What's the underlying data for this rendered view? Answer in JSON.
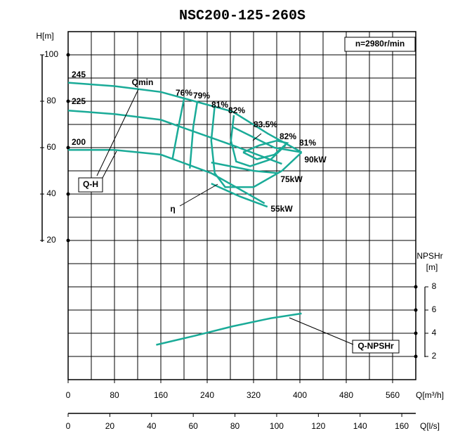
{
  "chart_data": {
    "type": "line",
    "title": "NSC200-125-260S",
    "ylabel": "H[m]",
    "y2label": [
      "NPSHr",
      "[m]"
    ],
    "xlabel": "Q[m³/h]",
    "x2label": "Q[l/s]",
    "xlim": [
      0,
      600
    ],
    "xticks": [
      0,
      80,
      160,
      240,
      320,
      400,
      480,
      560
    ],
    "x2lim": [
      0,
      166.7
    ],
    "x2ticks": [
      0,
      20,
      40,
      60,
      80,
      100,
      120,
      140,
      160
    ],
    "ylim": [
      -40,
      110
    ],
    "yticks": [
      20,
      40,
      60,
      80,
      100
    ],
    "y2lim": [
      0,
      30
    ],
    "y2ticks": [
      2,
      4,
      6,
      8
    ],
    "grid": true,
    "color": "#1aab98",
    "annotations": [
      "n=2980r/min",
      "Qmin",
      "Q-H",
      "η"
    ],
    "series": [
      {
        "name": "245",
        "x": [
          0,
          80,
          160,
          284,
          345,
          403
        ],
        "values": [
          88,
          86.5,
          84,
          75.5,
          66,
          58
        ]
      },
      {
        "name": "225",
        "x": [
          0,
          80,
          160,
          284,
          369
        ],
        "values": [
          76,
          74.5,
          72,
          61,
          53
        ]
      },
      {
        "name": "200",
        "x": [
          0,
          80,
          160,
          247,
          339
        ],
        "values": [
          59,
          59,
          57,
          49,
          36
        ]
      },
      {
        "name": "76%",
        "x": [
          200,
          192,
          180
        ],
        "values": [
          81,
          71,
          55
        ]
      },
      {
        "name": "79%",
        "x": [
          223,
          216,
          210
        ],
        "values": [
          80,
          69,
          51
        ]
      },
      {
        "name": "81%",
        "x": [
          253,
          247,
          253,
          271,
          320,
          369,
          403
        ],
        "values": [
          78,
          63,
          49,
          43,
          43,
          50,
          58
        ]
      },
      {
        "name": "82%",
        "x": [
          286,
          281,
          290,
          314,
          350,
          375
        ],
        "values": [
          74,
          63,
          54,
          52,
          55,
          61
        ]
      },
      {
        "name": "83.5%",
        "x": [
          302,
          326,
          356,
          378,
          360,
          330,
          302
        ],
        "values": [
          58,
          55,
          57,
          62,
          63,
          61,
          58
        ]
      },
      {
        "name": "90kW",
        "x": [
          283,
          356,
          403
        ],
        "values": [
          69,
          60,
          58
        ]
      },
      {
        "name": "75kW",
        "x": [
          247,
          320,
          362
        ],
        "values": [
          53.6,
          50,
          49
        ]
      },
      {
        "name": "55kW",
        "x": [
          247,
          296,
          344
        ],
        "values": [
          44.5,
          39,
          34.5
        ]
      },
      {
        "name": "Q-NPSHr",
        "axis": "y2",
        "x": [
          152,
          220,
          284,
          350,
          403
        ],
        "values": [
          3,
          3.8,
          4.6,
          5.3,
          5.7
        ]
      }
    ]
  }
}
